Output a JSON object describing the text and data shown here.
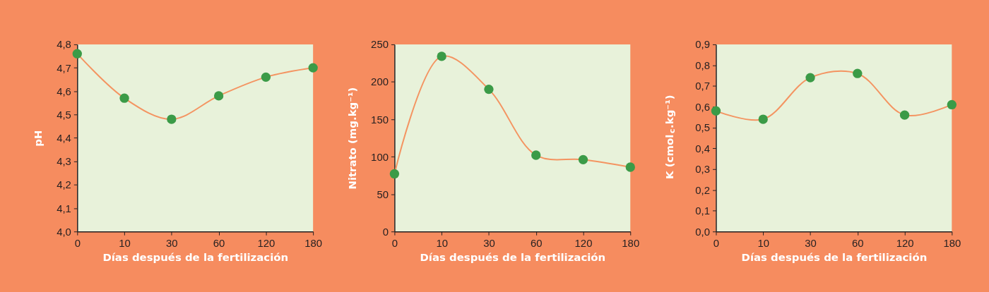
{
  "chart_data": [
    {
      "type": "line",
      "categories": [
        "0",
        "10",
        "30",
        "60",
        "120",
        "180"
      ],
      "xlabel": "Días después de la fertilización",
      "ylabel": "pH",
      "ylim": [
        4.0,
        4.8
      ],
      "yticks": [
        {
          "value": 4.0,
          "label": "4,0"
        },
        {
          "value": 4.1,
          "label": "4,1"
        },
        {
          "value": 4.2,
          "label": "4,2"
        },
        {
          "value": 4.3,
          "label": "4,3"
        },
        {
          "value": 4.4,
          "label": "4,4"
        },
        {
          "value": 4.5,
          "label": "4,5"
        },
        {
          "value": 4.6,
          "label": "4,6"
        },
        {
          "value": 4.7,
          "label": "4,7"
        },
        {
          "value": 4.8,
          "label": "4,8"
        }
      ],
      "marker": "circle",
      "line_style": "solid",
      "series": [
        {
          "color": "#f49461",
          "colors": [
            "#3b9b47",
            "#3b9b47",
            "#3b9b47",
            "#3b9b47",
            "#3b9b47",
            "#3b9b47"
          ],
          "values": [
            4.76,
            4.57,
            4.48,
            4.58,
            4.66,
            4.7
          ]
        }
      ]
    },
    {
      "type": "line",
      "categories": [
        "0",
        "10",
        "30",
        "60",
        "120",
        "180"
      ],
      "xlabel": "Días después de la fertilización",
      "ylabel": "Nitrato (mg.kg⁻¹)",
      "ylim": [
        0,
        250
      ],
      "yticks": [
        0,
        50,
        100,
        150,
        200,
        250
      ],
      "marker": "circle",
      "line_style": "solid",
      "series": [
        {
          "color": "#f49461",
          "colors": [
            "#3b9b47",
            "#3b9b47",
            "#3b9b47",
            "#3b9b47",
            "#3b9b47",
            "#3b9b47"
          ],
          "values": [
            77,
            234,
            190,
            102,
            96,
            86
          ]
        }
      ]
    },
    {
      "type": "line",
      "categories": [
        "0",
        "10",
        "30",
        "60",
        "120",
        "180"
      ],
      "xlabel": "Días después de la fertilización",
      "ylabel": "K (cmol$_{c}$.kg⁻¹)",
      "ylim": [
        0.0,
        0.9
      ],
      "yticks": [
        {
          "value": 0.0,
          "label": "0,0"
        },
        {
          "value": 0.1,
          "label": "0,1"
        },
        {
          "value": 0.2,
          "label": "0,2"
        },
        {
          "value": 0.3,
          "label": "0,3"
        },
        {
          "value": 0.4,
          "label": "0,4"
        },
        {
          "value": 0.5,
          "label": "0,5"
        },
        {
          "value": 0.6,
          "label": "0,6"
        },
        {
          "value": 0.7,
          "label": "0,7"
        },
        {
          "value": 0.8,
          "label": "0,8"
        },
        {
          "value": 0.9,
          "label": "0,9"
        }
      ],
      "marker": "circle",
      "line_style": "solid",
      "series": [
        {
          "color": "#f49461",
          "colors": [
            "#3b9b47",
            "#3b9b47",
            "#3b9b47",
            "#3b9b47",
            "#3b9b47",
            "#3b9b47"
          ],
          "values": [
            0.58,
            0.54,
            0.74,
            0.76,
            0.56,
            0.61
          ]
        }
      ]
    }
  ]
}
